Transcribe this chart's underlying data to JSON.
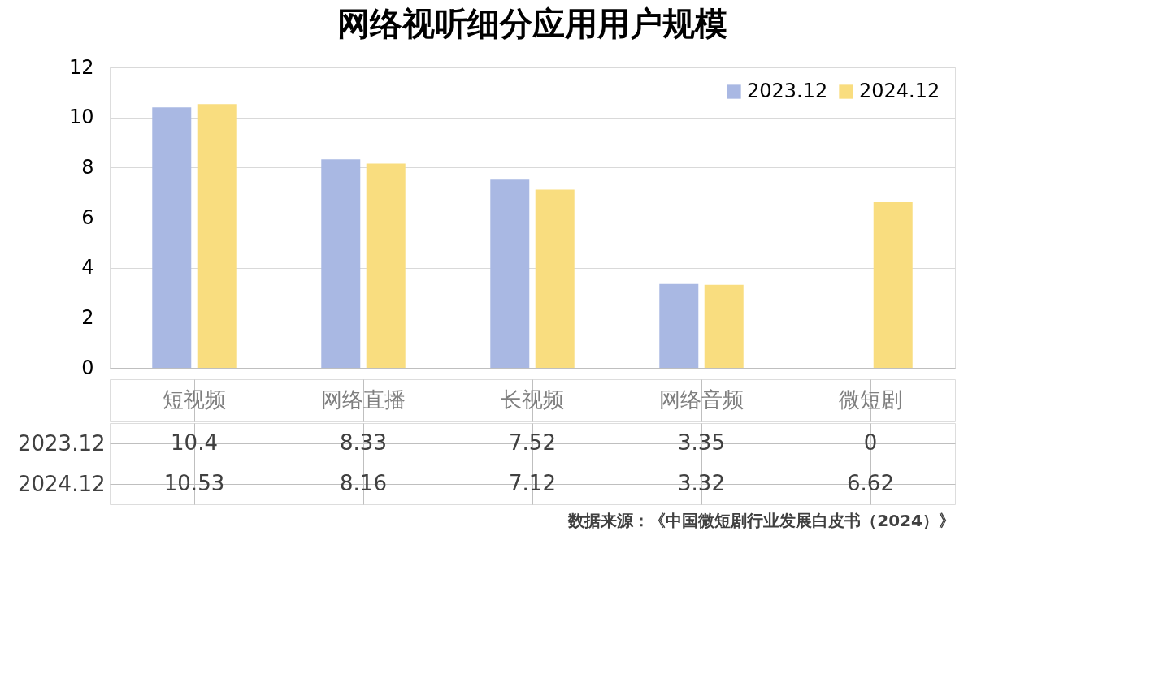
{
  "chart_data": {
    "type": "bar",
    "title": "网络视听细分应用用户规模",
    "categories": [
      "短视频",
      "网络直播",
      "长视频",
      "网络音频",
      "微短剧"
    ],
    "series": [
      {
        "name": "2023.12",
        "color": "#a9b8e3",
        "values": [
          10.4,
          8.33,
          7.52,
          3.35,
          0
        ]
      },
      {
        "name": "2024.12",
        "color": "#f9dd7f",
        "values": [
          10.53,
          8.16,
          7.12,
          3.32,
          6.62
        ]
      }
    ],
    "ylim": [
      0,
      12
    ],
    "yticks": [
      0,
      2,
      4,
      6,
      8,
      10,
      12
    ],
    "grid": "y",
    "legend": "top right",
    "data_labels": true,
    "annotations": [
      "数据来源：《中国微短剧行业发展白皮书（2024）》"
    ]
  }
}
